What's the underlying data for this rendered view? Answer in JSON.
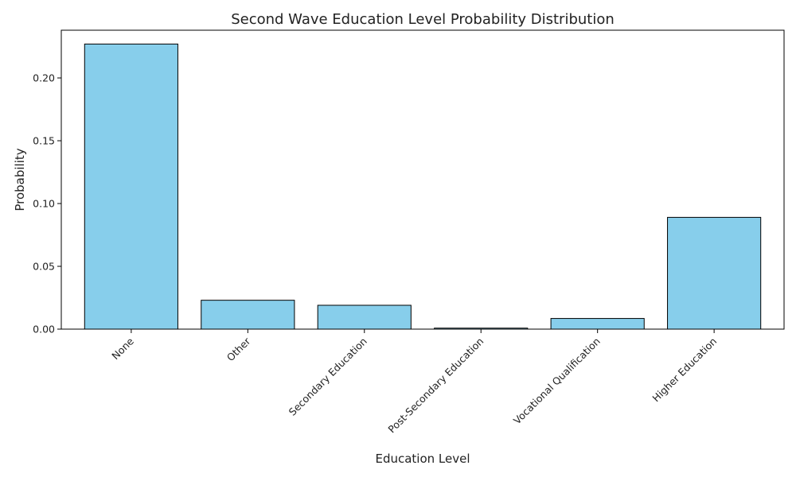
{
  "chart_data": {
    "type": "bar",
    "title": "Second Wave Education Level Probability Distribution",
    "xlabel": "Education Level",
    "ylabel": "Probability",
    "categories": [
      "None",
      "Other",
      "Secondary Education",
      "Post-Secondary Education",
      "Vocational Qualification",
      "Higher Education"
    ],
    "values": [
      0.227,
      0.023,
      0.019,
      0.0008,
      0.0085,
      0.089
    ],
    "ylim": [
      0,
      0.238
    ],
    "yticks": [
      0.0,
      0.05,
      0.1,
      0.15,
      0.2
    ],
    "ytick_labels": [
      "0.00",
      "0.05",
      "0.10",
      "0.15",
      "0.20"
    ],
    "grid": false,
    "bar_color": "#87ceeb",
    "edge_color": "#000000"
  }
}
